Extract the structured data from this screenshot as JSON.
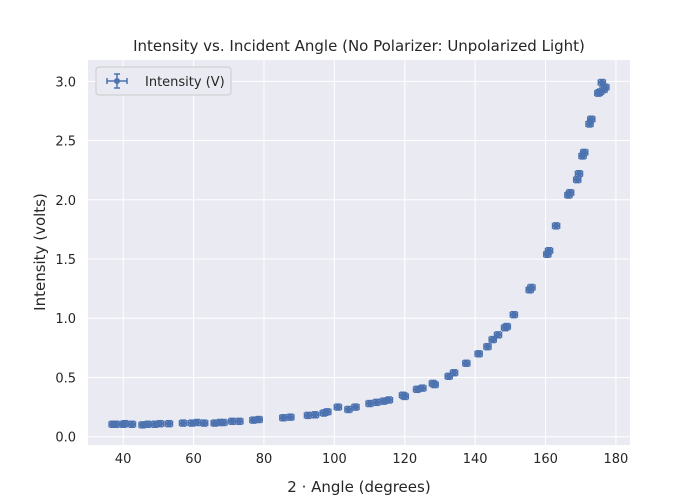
{
  "chart_data": {
    "type": "scatter",
    "title": "Intensity vs. Incident Angle (No Polarizer: Unpolarized Light)",
    "xlabel": "2 · Angle (degrees)",
    "ylabel": "Intensity (volts)",
    "xlim": [
      30,
      184
    ],
    "ylim": [
      -0.07,
      3.18
    ],
    "xticks": [
      40,
      60,
      80,
      100,
      120,
      140,
      160,
      180
    ],
    "yticks": [
      0.0,
      0.5,
      1.0,
      1.5,
      2.0,
      2.5,
      3.0
    ],
    "xtick_labels": [
      "40",
      "60",
      "80",
      "100",
      "120",
      "140",
      "160",
      "180"
    ],
    "ytick_labels": [
      "0.0",
      "0.5",
      "1.0",
      "1.5",
      "2.0",
      "2.5",
      "3.0"
    ],
    "grid": true,
    "legend_position": "top-left",
    "colors": {
      "series": "#4c72b0",
      "background": "#eaeaf2",
      "grid": "#ffffff"
    },
    "series": [
      {
        "name": "Intensity (V)",
        "marker": "circle",
        "x": [
          37,
          38,
          40,
          40.5,
          42.5,
          45.5,
          47,
          49,
          50.5,
          53,
          57,
          59.5,
          61,
          63,
          66,
          67.5,
          68.5,
          71,
          73,
          77,
          78.5,
          85.5,
          87.5,
          92.5,
          94.5,
          97,
          98,
          101,
          104,
          106,
          110,
          112,
          114,
          115.5,
          119.5,
          120,
          123.5,
          125,
          128,
          128.5,
          132.5,
          134,
          137.5,
          141,
          143.5,
          145,
          146.5,
          148.5,
          149,
          151,
          155.5,
          156,
          160.5,
          161,
          163,
          166.5,
          167,
          169,
          169.5,
          170.5,
          171,
          172.5,
          173,
          175,
          175.5,
          176,
          176.5,
          177
        ],
        "y": [
          0.105,
          0.105,
          0.105,
          0.11,
          0.105,
          0.1,
          0.105,
          0.105,
          0.11,
          0.11,
          0.115,
          0.115,
          0.12,
          0.115,
          0.115,
          0.12,
          0.12,
          0.13,
          0.13,
          0.14,
          0.145,
          0.16,
          0.165,
          0.18,
          0.185,
          0.2,
          0.21,
          0.25,
          0.23,
          0.25,
          0.28,
          0.29,
          0.3,
          0.31,
          0.35,
          0.34,
          0.4,
          0.41,
          0.45,
          0.44,
          0.51,
          0.54,
          0.62,
          0.7,
          0.76,
          0.82,
          0.86,
          0.92,
          0.93,
          1.03,
          1.24,
          1.26,
          1.54,
          1.57,
          1.78,
          2.04,
          2.06,
          2.17,
          2.22,
          2.37,
          2.4,
          2.64,
          2.68,
          2.9,
          2.91,
          2.99,
          2.93,
          2.95
        ],
        "xerr": 1.0,
        "yerr": 0.025
      }
    ]
  }
}
